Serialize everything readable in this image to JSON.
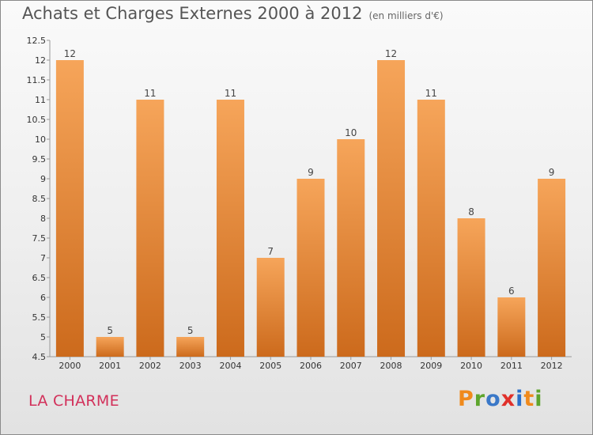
{
  "header": {
    "title": "Achats et Charges Externes 2000 à 2012",
    "unit_note": "(en milliers d'€)"
  },
  "footer": {
    "commune": "LA CHARME",
    "brand": "Proxiti"
  },
  "colors": {
    "bar_top": "#f6a55a",
    "bar_bottom": "#cc6a1c",
    "commune_text": "#d2305a",
    "brand_letters": [
      "#f08a1c",
      "#5ea52d",
      "#3a78c8",
      "#e0302a",
      "#2b6fc9",
      "#f08a1c",
      "#5ea52d"
    ]
  },
  "chart_data": {
    "type": "bar",
    "title": "Achats et Charges Externes 2000 à 2012",
    "subtitle": "(en milliers d'€)",
    "categories": [
      "2000",
      "2001",
      "2002",
      "2003",
      "2004",
      "2005",
      "2006",
      "2007",
      "2008",
      "2009",
      "2010",
      "2011",
      "2012"
    ],
    "values": [
      12,
      5,
      11,
      5,
      11,
      7,
      9,
      10,
      12,
      11,
      8,
      6,
      9
    ],
    "data_labels": [
      "12",
      "5",
      "11",
      "5",
      "11",
      "7",
      "9",
      "10",
      "12",
      "11",
      "8",
      "6",
      "9"
    ],
    "ylim": [
      4.5,
      12.5
    ],
    "yticks": [
      "4.5",
      "5",
      "5.5",
      "6",
      "6.5",
      "7",
      "7.5",
      "8",
      "8.5",
      "9",
      "9.5",
      "10",
      "10.5",
      "11",
      "11.5",
      "12",
      "12.5"
    ],
    "grid": false,
    "xlabel": "",
    "ylabel": ""
  }
}
